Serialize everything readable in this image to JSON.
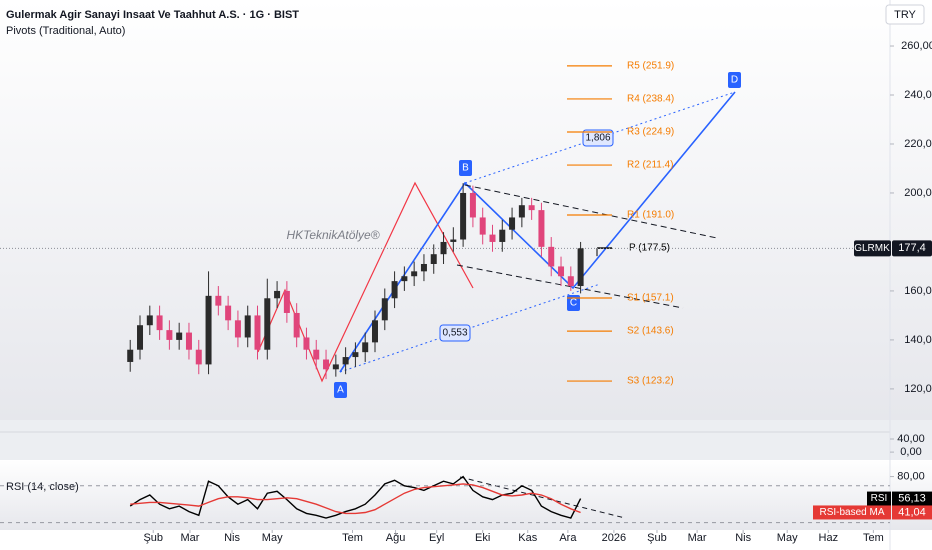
{
  "header": {
    "title": "Gulermak Agir Sanayi Insaat Ve Taahhut A.S. · 1G · BIST",
    "indicator": "Pivots (Traditional, Auto)",
    "currency": "TRY"
  },
  "chart_data": {
    "type": "candlestick",
    "symbol": "GLRMK",
    "last_label": "177,4",
    "watermark": "HKTeknikAtölye®",
    "up_color": "#2b2b2b",
    "down_color": "#e0457b",
    "open": [
      131,
      136,
      146,
      150,
      144,
      140,
      143,
      136,
      130,
      158,
      154,
      148,
      141,
      150,
      136,
      157,
      160,
      151,
      141,
      136,
      132,
      128,
      130,
      133,
      135,
      139,
      148,
      157,
      164,
      166,
      168,
      171,
      175,
      180,
      181,
      200,
      190,
      183,
      180,
      185,
      190,
      195,
      193,
      178,
      170,
      166,
      162
    ],
    "high": [
      140,
      150,
      154,
      154,
      148,
      147,
      147,
      140,
      168,
      162,
      158,
      152,
      154,
      154,
      165,
      164,
      164,
      155,
      145,
      140,
      136,
      134,
      137,
      139,
      143,
      152,
      161,
      168,
      170,
      172,
      175,
      179,
      184,
      186,
      204,
      203,
      194,
      187,
      189,
      194,
      198,
      198,
      196,
      182,
      174,
      170,
      180
    ],
    "low": [
      127,
      132,
      142,
      140,
      136,
      136,
      132,
      126,
      126,
      150,
      144,
      137,
      137,
      132,
      132,
      153,
      147,
      137,
      132,
      128,
      124,
      125,
      126,
      129,
      131,
      135,
      144,
      153,
      160,
      162,
      164,
      167,
      171,
      176,
      178,
      186,
      179,
      176,
      176,
      181,
      186,
      189,
      174,
      166,
      162,
      160,
      159
    ],
    "close": [
      136,
      146,
      150,
      144,
      140,
      143,
      136,
      130,
      158,
      154,
      148,
      141,
      150,
      136,
      157,
      160,
      151,
      141,
      136,
      132,
      128,
      130,
      133,
      135,
      139,
      148,
      157,
      164,
      166,
      168,
      171,
      175,
      180,
      181,
      200,
      190,
      183,
      180,
      185,
      190,
      195,
      193,
      178,
      170,
      166,
      162,
      177.4
    ],
    "ylim": [
      107.3,
      264.5
    ],
    "yticks": [
      {
        "value": 260,
        "label": "260,00"
      },
      {
        "value": 240,
        "label": "240,0"
      },
      {
        "value": 220,
        "label": "220,0"
      },
      {
        "value": 200,
        "label": "200,0"
      },
      {
        "value": 160,
        "label": "160,0"
      },
      {
        "value": 140,
        "label": "140,0"
      },
      {
        "value": 120,
        "label": "120,0"
      }
    ],
    "xlim": [
      -13.3,
      77.6
    ],
    "xticks": [
      {
        "value": 2.35,
        "label": "Şub"
      },
      {
        "value": 6.1,
        "label": "Mar"
      },
      {
        "value": 10.4,
        "label": "Nis"
      },
      {
        "value": 14.5,
        "label": "May"
      },
      {
        "value": 22.7,
        "label": "Tem"
      },
      {
        "value": 27.1,
        "label": "Ağu"
      },
      {
        "value": 31.3,
        "label": "Eyl"
      },
      {
        "value": 36.0,
        "label": "Eki"
      },
      {
        "value": 40.6,
        "label": "Kas"
      },
      {
        "value": 44.7,
        "label": "Ara"
      },
      {
        "value": 49.4,
        "label": "2026"
      },
      {
        "value": 53.8,
        "label": "Şub"
      },
      {
        "value": 57.9,
        "label": "Mar"
      },
      {
        "value": 62.6,
        "label": "Nis"
      },
      {
        "value": 67.1,
        "label": "May"
      },
      {
        "value": 71.3,
        "label": "Haz"
      },
      {
        "value": 75.9,
        "label": "Tem"
      }
    ],
    "pivots": [
      {
        "label": "R5 (251.9)",
        "value": 251.9,
        "color": "#f57c00"
      },
      {
        "label": "R4 (238.4)",
        "value": 238.4,
        "color": "#f57c00"
      },
      {
        "label": "R3 (224.9)",
        "value": 224.9,
        "color": "#f57c00"
      },
      {
        "label": "R2 (211.4)",
        "value": 211.4,
        "color": "#f57c00"
      },
      {
        "label": "R1 (191.0)",
        "value": 191.0,
        "color": "#f57c00"
      },
      {
        "label": "P (177.5)",
        "value": 177.5,
        "color": "#000000"
      },
      {
        "label": "S1 (157.1)",
        "value": 157.1,
        "color": "#f57c00"
      },
      {
        "label": "S2 (143.6)",
        "value": 143.6,
        "color": "#f57c00"
      },
      {
        "label": "S3 (123.2)",
        "value": 123.2,
        "color": "#f57c00"
      }
    ],
    "pattern_labels": [
      "A",
      "B",
      "C",
      "D"
    ],
    "ratios": [
      "1,806",
      "0,553"
    ]
  },
  "volume_pane": {
    "ylim": [
      -18,
      98
    ],
    "yticks": [
      {
        "value": 40,
        "label": "40,00"
      },
      {
        "value": 0,
        "label": "0,00"
      }
    ]
  },
  "rsi_pane": {
    "title": "RSI (14, close)",
    "ylim": [
      22,
      98
    ],
    "yticks": [
      {
        "value": 80,
        "label": "80,00"
      }
    ],
    "bands": [
      70,
      30
    ],
    "series": [
      {
        "name": "RSI",
        "color": "#000000",
        "last_label": "56,13",
        "values": [
          48,
          55,
          60,
          50,
          45,
          48,
          42,
          38,
          75,
          70,
          58,
          50,
          55,
          45,
          62,
          64,
          55,
          45,
          40,
          38,
          35,
          38,
          42,
          45,
          50,
          60,
          72,
          76,
          70,
          68,
          65,
          70,
          75,
          72,
          80,
          65,
          58,
          55,
          60,
          62,
          70,
          65,
          48,
          42,
          38,
          35,
          56.13
        ]
      },
      {
        "name": "RSI-based MA",
        "color": "#e53935",
        "last_label": "41,04",
        "values": [
          50,
          51,
          52,
          52,
          51,
          50,
          49,
          48,
          52,
          56,
          58,
          58,
          57,
          55,
          55,
          56,
          57,
          56,
          53,
          50,
          46,
          42,
          40,
          40,
          41,
          44,
          50,
          56,
          62,
          66,
          68,
          69,
          70,
          71,
          72,
          71,
          68,
          64,
          60,
          59,
          60,
          62,
          60,
          56,
          50,
          45,
          41.04
        ]
      }
    ]
  }
}
